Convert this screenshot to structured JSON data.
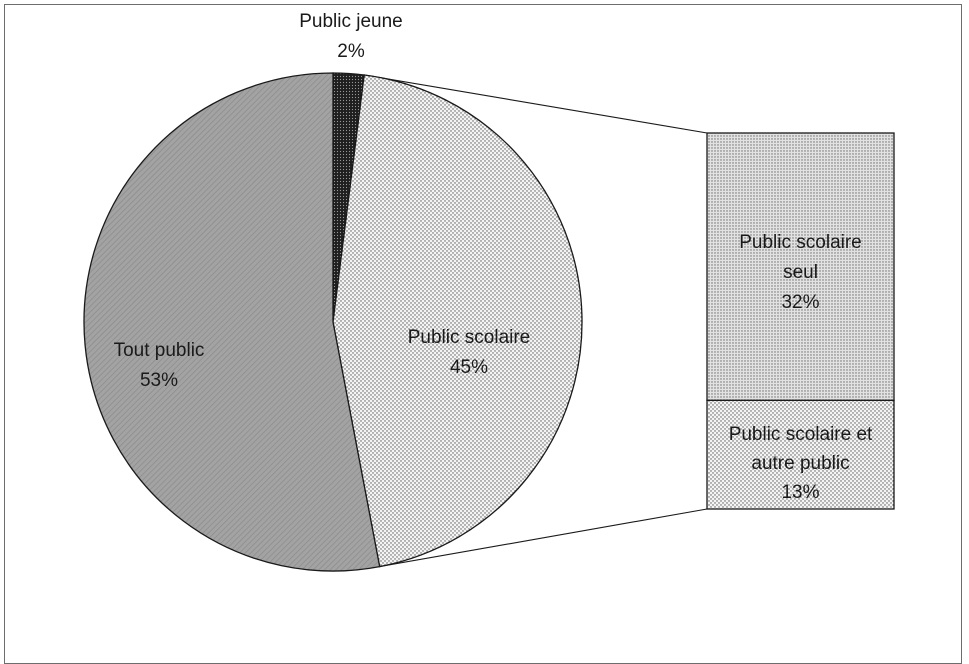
{
  "chart_data": {
    "type": "bar-of-pie",
    "slices": [
      {
        "key": "jeune",
        "label": "Public jeune",
        "value": 2,
        "value_label": "2%",
        "pattern": "dark-dots"
      },
      {
        "key": "scolaire",
        "label": "Public scolaire",
        "value": 45,
        "value_label": "45%",
        "pattern": "light-dots"
      },
      {
        "key": "tout",
        "label": "Tout public",
        "value": 53,
        "value_label": "53%",
        "pattern": "gray-diagonal"
      }
    ],
    "breakdown_of": "Public scolaire",
    "bar_segments": [
      {
        "key": "seul",
        "label_lines": [
          "Public scolaire",
          "seul"
        ],
        "value": 32,
        "value_label": "32%",
        "pattern": "medium-dots"
      },
      {
        "key": "autre",
        "label_lines": [
          "Public scolaire et",
          "autre public"
        ],
        "value": 13,
        "value_label": "13%",
        "pattern": "light-dots"
      }
    ],
    "colors": {
      "outline": "#1a1a1a",
      "frame": "#6d6d6d",
      "tout_public_fill": "#a6a6a6",
      "jeune_fill": "#1f1f1f"
    }
  }
}
